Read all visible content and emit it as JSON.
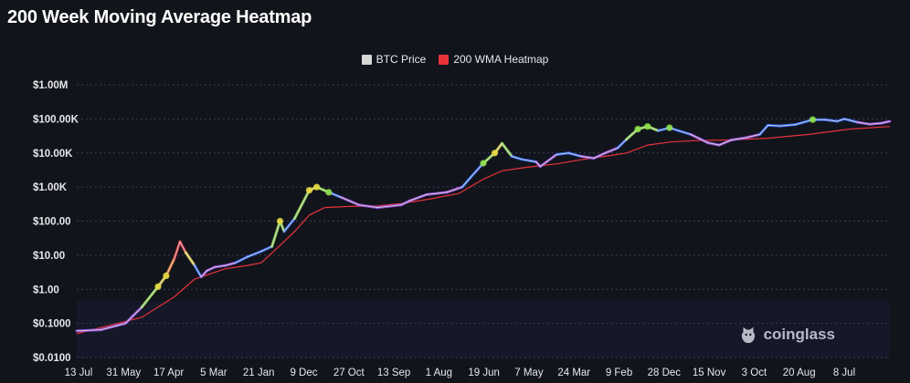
{
  "title": "200 Week Moving Average Heatmap",
  "legend": [
    {
      "label": "BTC Price",
      "color": "#d8d8d8"
    },
    {
      "label": "200 WMA Heatmap",
      "color": "#e8333a"
    }
  ],
  "watermark": "coinglass",
  "chart_data": {
    "type": "line",
    "scale": "log",
    "y_ticks": [
      {
        "label": "$1.00M",
        "value": 1000000
      },
      {
        "label": "$100.00K",
        "value": 100000
      },
      {
        "label": "$10.00K",
        "value": 10000
      },
      {
        "label": "$1.00K",
        "value": 1000
      },
      {
        "label": "$100.00",
        "value": 100
      },
      {
        "label": "$10.00",
        "value": 10
      },
      {
        "label": "$1.00",
        "value": 1
      },
      {
        "label": "$0.1000",
        "value": 0.1
      },
      {
        "label": "$0.0100",
        "value": 0.01
      }
    ],
    "ylim": [
      0.01,
      1000000
    ],
    "x_ticks": [
      "13 Jul",
      "31 May",
      "17 Apr",
      "5 Mar",
      "21 Jan",
      "9 Dec",
      "27 Oct",
      "13 Sep",
      "1 Aug",
      "19 Jun",
      "7 May",
      "24 Mar",
      "9 Feb",
      "28 Dec",
      "15 Nov",
      "3 Oct",
      "20 Aug",
      "8 Jul"
    ],
    "grid": true,
    "series": [
      {
        "name": "BTC Price",
        "color": "#d8d8d8",
        "points": [
          [
            0,
            0.06
          ],
          [
            3,
            0.065
          ],
          [
            6,
            0.1
          ],
          [
            8,
            0.3
          ],
          [
            10,
            1.2
          ],
          [
            11,
            2.5
          ],
          [
            12,
            8
          ],
          [
            12.7,
            25
          ],
          [
            13.4,
            12
          ],
          [
            14.5,
            5
          ],
          [
            15.3,
            2.3
          ],
          [
            16,
            3.5
          ],
          [
            17,
            4.5
          ],
          [
            18.3,
            5
          ],
          [
            19.5,
            6
          ],
          [
            21,
            9
          ],
          [
            22.7,
            13
          ],
          [
            24,
            18
          ],
          [
            25,
            100
          ],
          [
            25.5,
            50
          ],
          [
            26.8,
            120
          ],
          [
            28.6,
            800
          ],
          [
            29.5,
            1000
          ],
          [
            31,
            700
          ],
          [
            32.5,
            500
          ],
          [
            34.7,
            300
          ],
          [
            37,
            250
          ],
          [
            39.9,
            300
          ],
          [
            41,
            400
          ],
          [
            43,
            600
          ],
          [
            45.5,
            700
          ],
          [
            47.4,
            1000
          ],
          [
            48.5,
            2000
          ],
          [
            50,
            5000
          ],
          [
            51.4,
            10000
          ],
          [
            52.3,
            19000
          ],
          [
            53.5,
            8000
          ],
          [
            54.7,
            6500
          ],
          [
            56.5,
            5500
          ],
          [
            57,
            4000
          ],
          [
            59,
            9000
          ],
          [
            60.5,
            10000
          ],
          [
            62,
            8000
          ],
          [
            63.6,
            7000
          ],
          [
            65,
            10000
          ],
          [
            66.5,
            14000
          ],
          [
            67.6,
            25000
          ],
          [
            69,
            50000
          ],
          [
            70.2,
            60000
          ],
          [
            71.5,
            45000
          ],
          [
            72.9,
            55000
          ],
          [
            74,
            45000
          ],
          [
            75.5,
            35000
          ],
          [
            77.6,
            20000
          ],
          [
            79,
            17000
          ],
          [
            80.5,
            24000
          ],
          [
            82.3,
            28000
          ],
          [
            84,
            35000
          ],
          [
            85,
            65000
          ],
          [
            86.5,
            62000
          ],
          [
            88.4,
            68000
          ],
          [
            90.5,
            95000
          ],
          [
            92,
            95000
          ],
          [
            93.5,
            85000
          ],
          [
            94.4,
            100000
          ],
          [
            96,
            80000
          ],
          [
            97.5,
            70000
          ],
          [
            99,
            75000
          ],
          [
            100,
            85000
          ]
        ]
      },
      {
        "name": "200 WMA Heatmap",
        "color": "#e8333a",
        "points": [
          [
            0,
            0.05
          ],
          [
            8,
            0.15
          ],
          [
            12,
            0.6
          ],
          [
            14.5,
            2
          ],
          [
            18.3,
            4
          ],
          [
            21,
            5
          ],
          [
            22.7,
            6
          ],
          [
            24.5,
            15
          ],
          [
            26.8,
            50
          ],
          [
            28.6,
            150
          ],
          [
            30.5,
            250
          ],
          [
            33.5,
            270
          ],
          [
            37,
            280
          ],
          [
            40,
            330
          ],
          [
            43.5,
            450
          ],
          [
            47,
            650
          ],
          [
            50,
            1700
          ],
          [
            52.3,
            3000
          ],
          [
            55,
            3700
          ],
          [
            59,
            4800
          ],
          [
            62,
            6300
          ],
          [
            65,
            8000
          ],
          [
            67.6,
            10000
          ],
          [
            70.2,
            17000
          ],
          [
            73,
            21000
          ],
          [
            76,
            23000
          ],
          [
            80,
            24000
          ],
          [
            85,
            27000
          ],
          [
            90,
            35000
          ],
          [
            95,
            50000
          ],
          [
            100,
            60000
          ]
        ]
      }
    ]
  }
}
